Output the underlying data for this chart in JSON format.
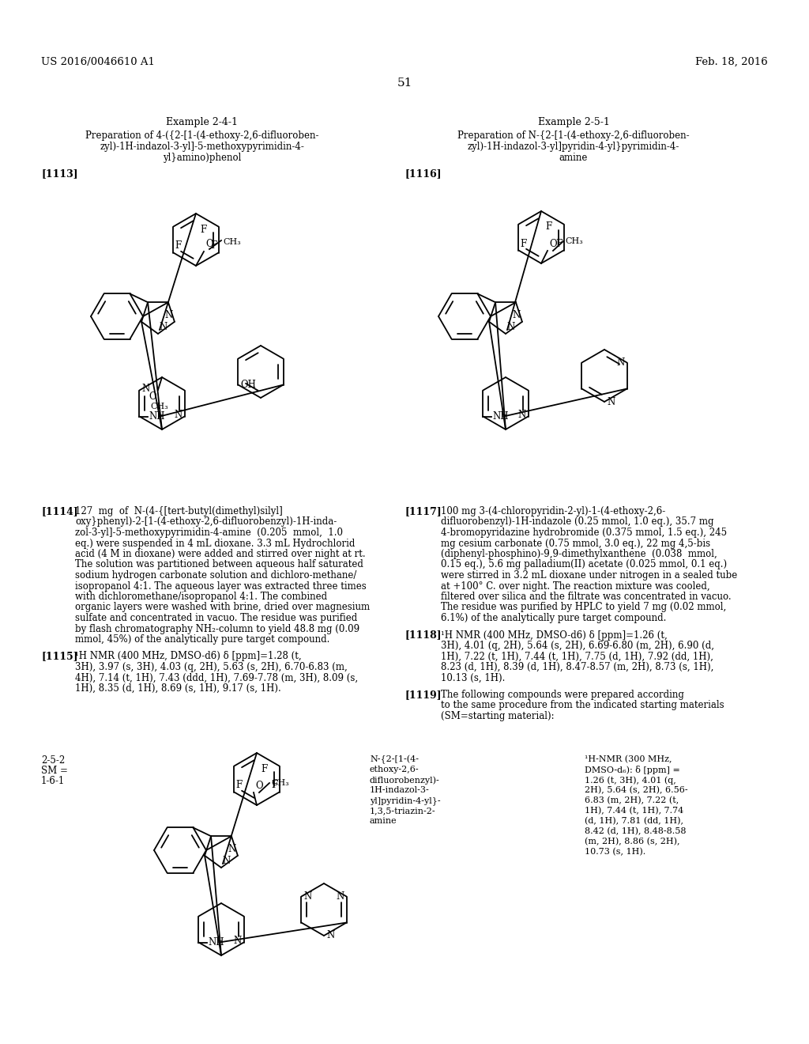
{
  "background_color": "#ffffff",
  "header_left": "US 2016/0046610 A1",
  "header_right": "Feb. 18, 2016",
  "page_number": "51",
  "example_241_title": "Example 2-4-1",
  "example_241_sub1": "Preparation of 4-({2-[1-(4-ethoxy-2,6-difluoroben-",
  "example_241_sub2": "zyl)-1H-indazol-3-yl]-5-methoxypyrimidin-4-",
  "example_241_sub3": "yl}amino)phenol",
  "tag_1113": "[1113]",
  "example_251_title": "Example 2-5-1",
  "example_251_sub1": "Preparation of N-{2-[1-(4-ethoxy-2,6-difluoroben-",
  "example_251_sub2": "zyl)-1H-indazol-3-yl]pyridin-4-yl}pyrimidin-4-",
  "example_251_sub3": "amine",
  "tag_1116": "[1116]",
  "tag_1114": "[1114]",
  "text_1114_a": "127  mg  of  N-(4-{[tert-butyl(dimethyl)silyl]",
  "text_1114_b": "oxy}phenyl)-2-[1-(4-ethoxy-2,6-difluorobenzyl)-1H-inda-",
  "text_1114_c": "zol-3-yl]-5-methoxypyrimidin-4-amine  (0.205  mmol,  1.0",
  "text_1114_d": "eq.) were suspended in 4 mL dioxane. 3.3 mL Hydrochlorid",
  "text_1114_e": "acid (4 M in dioxane) were added and stirred over night at rt.",
  "text_1114_f": "The solution was partitioned between aqueous half saturated",
  "text_1114_g": "sodium hydrogen carbonate solution and dichloro-methane/",
  "text_1114_h": "isopropanol 4:1. The aqueous layer was extracted three times",
  "text_1114_i": "with dichloromethane/isopropanol 4:1. The combined",
  "text_1114_j": "organic layers were washed with brine, dried over magnesium",
  "text_1114_k": "sulfate and concentrated in vacuo. The residue was purified",
  "text_1114_l": "by flash chromatography NH₂-column to yield 48.8 mg (0.09",
  "text_1114_m": "mmol, 45%) of the analytically pure target compound.",
  "tag_1115": "[1115]",
  "text_1115_a": "¹H NMR (400 MHz, DMSO-d6) δ [ppm]=1.28 (t,",
  "text_1115_b": "3H), 3.97 (s, 3H), 4.03 (q, 2H), 5.63 (s, 2H), 6.70-6.83 (m,",
  "text_1115_c": "4H), 7.14 (t, 1H), 7.43 (ddd, 1H), 7.69-7.78 (m, 3H), 8.09 (s,",
  "text_1115_d": "1H), 8.35 (d, 1H), 8.69 (s, 1H), 9.17 (s, 1H).",
  "tag_1117": "[1117]",
  "text_1117_a": "100 mg 3-(4-chloropyridin-2-yl)-1-(4-ethoxy-2,6-",
  "text_1117_b": "difluorobenzyl)-1H-indazole (0.25 mmol, 1.0 eq.), 35.7 mg",
  "text_1117_c": "4-bromopyridazine hydrobromide (0.375 mmol, 1.5 eq.), 245",
  "text_1117_d": "mg cesium carbonate (0.75 mmol, 3.0 eq.), 22 mg 4,5-bis",
  "text_1117_e": "(diphenyl-phosphino)-9,9-dimethylxanthene  (0.038  mmol,",
  "text_1117_f": "0.15 eq.), 5.6 mg palladium(II) acetate (0.025 mmol, 0.1 eq.)",
  "text_1117_g": "were stirred in 3.2 mL dioxane under nitrogen in a sealed tube",
  "text_1117_h": "at +100° C. over night. The reaction mixture was cooled,",
  "text_1117_i": "filtered over silica and the filtrate was concentrated in vacuo.",
  "text_1117_j": "The residue was purified by HPLC to yield 7 mg (0.02 mmol,",
  "text_1117_k": "6.1%) of the analytically pure target compound.",
  "tag_1118": "[1118]",
  "text_1118_a": "¹H NMR (400 MHz, DMSO-d6) δ [ppm]=1.26 (t,",
  "text_1118_b": "3H), 4.01 (q, 2H), 5.64 (s, 2H), 6.69-6.80 (m, 2H), 6.90 (d,",
  "text_1118_c": "1H), 7.22 (t, 1H), 7.44 (t, 1H), 7.75 (d, 1H), 7.92 (dd, 1H),",
  "text_1118_d": "8.23 (d, 1H), 8.39 (d, 1H), 8.47-8.57 (m, 2H), 8.73 (s, 1H),",
  "text_1118_e": "10.13 (s, 1H).",
  "tag_1119": "[1119]",
  "text_1119_a": "The following compounds were prepared according",
  "text_1119_b": "to the same procedure from the indicated starting materials",
  "text_1119_c": "(SM=starting material):",
  "bottom_label1": "2-5-2",
  "bottom_label2": "SM =",
  "bottom_label3": "1-6-1",
  "bottom_compound1": "N-{2-[1-(4-",
  "bottom_compound2": "ethoxy-2,6-",
  "bottom_compound3": "difluorobenzyl)-",
  "bottom_compound4": "1H-indazol-3-",
  "bottom_compound5": "yl]pyridin-4-yl}-",
  "bottom_compound6": "1,3,5-triazin-2-",
  "bottom_compound7": "amine",
  "bottom_nmr1": "¹H-NMR (300 MHz,",
  "bottom_nmr2": "DMSO-d₆): δ [ppm] =",
  "bottom_nmr3": "1.26 (t, 3H), 4.01 (q,",
  "bottom_nmr4": "2H), 5.64 (s, 2H), 6.56-",
  "bottom_nmr5": "6.83 (m, 2H), 7.22 (t,",
  "bottom_nmr6": "1H), 7.44 (t, 1H), 7.74",
  "bottom_nmr7": "(d, 1H), 7.81 (dd, 1H),",
  "bottom_nmr8": "8.42 (d, 1H), 8.48-8.58",
  "bottom_nmr9": "(m, 2H), 8.86 (s, 2H),",
  "bottom_nmr10": "10.73 (s, 1H)."
}
